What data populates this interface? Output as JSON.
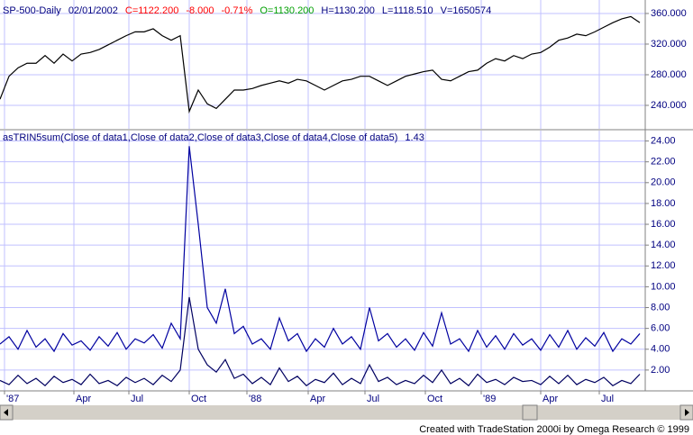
{
  "chart_data": [
    {
      "type": "line",
      "title": "SP-500-Daily",
      "annotations": [
        {
          "text": "02/01/2002",
          "color": "#000080"
        },
        {
          "text": "C=1122.200",
          "color": "#ff0000"
        },
        {
          "text": "-8.000",
          "color": "#ff0000"
        },
        {
          "text": "-0.71%",
          "color": "#ff0000"
        },
        {
          "text": "O=1130.200",
          "color": "#00a000"
        },
        {
          "text": "H=1130.200",
          "color": "#000080"
        },
        {
          "text": "L=1118.510",
          "color": "#000080"
        },
        {
          "text": "V=1650574",
          "color": "#000080"
        }
      ],
      "x": [
        0,
        1,
        2,
        3,
        4,
        5,
        6,
        7,
        8,
        9,
        10,
        11,
        12,
        13,
        14,
        15,
        16,
        17,
        18,
        19,
        20,
        21,
        22,
        23,
        24,
        25,
        26,
        27,
        28,
        29,
        30,
        31,
        32,
        33,
        34,
        35,
        36,
        37,
        38,
        39,
        40,
        41,
        42,
        43,
        44,
        45,
        46,
        47,
        48,
        49,
        50,
        51,
        52,
        53,
        54,
        55,
        56,
        57,
        58,
        59,
        60,
        61,
        62,
        63,
        64,
        65,
        66,
        67,
        68,
        69,
        70,
        71
      ],
      "series": [
        {
          "color": "#000000",
          "values": [
            248,
            278,
            289,
            295,
            295,
            305,
            295,
            307,
            298,
            307,
            309,
            313,
            319,
            325,
            331,
            336,
            336,
            340,
            331,
            325,
            331,
            232,
            260,
            242,
            236,
            248,
            260,
            260,
            262,
            266,
            269,
            272,
            269,
            274,
            272,
            266,
            260,
            266,
            272,
            274,
            278,
            278,
            272,
            266,
            272,
            278,
            281,
            284,
            286,
            274,
            272,
            278,
            284,
            286,
            295,
            301,
            298,
            305,
            301,
            307,
            309,
            316,
            325,
            328,
            333,
            331,
            336,
            342,
            348,
            353,
            356,
            348
          ]
        }
      ],
      "xlim": [
        0,
        71.6
      ],
      "ylim": [
        209.4,
        377.6
      ],
      "yticks": [
        {
          "value": 240,
          "label": "240.000"
        },
        {
          "value": 280,
          "label": "280.000"
        },
        {
          "value": 320,
          "label": "320.000"
        },
        {
          "value": 360,
          "label": "360.000"
        }
      ],
      "grid": true
    },
    {
      "type": "line",
      "title": "asTRIN5sum(Close of data1,Close of data2,Close of data3,Close of data4,Close of data5)",
      "annotations": [
        {
          "text": "1.43",
          "color": "#000080"
        }
      ],
      "x": [
        0,
        1,
        2,
        3,
        4,
        5,
        6,
        7,
        8,
        9,
        10,
        11,
        12,
        13,
        14,
        15,
        16,
        17,
        18,
        19,
        20,
        21,
        22,
        23,
        24,
        25,
        26,
        27,
        28,
        29,
        30,
        31,
        32,
        33,
        34,
        35,
        36,
        37,
        38,
        39,
        40,
        41,
        42,
        43,
        44,
        45,
        46,
        47,
        48,
        49,
        50,
        51,
        52,
        53,
        54,
        55,
        56,
        57,
        58,
        59,
        60,
        61,
        62,
        63,
        64,
        65,
        66,
        67,
        68,
        69,
        70,
        71
      ],
      "series": [
        {
          "color": "#0000a0",
          "values": [
            4.5,
            5.2,
            4.0,
            5.8,
            4.2,
            5.0,
            3.8,
            5.5,
            4.4,
            4.8,
            3.9,
            5.2,
            4.3,
            5.6,
            4.0,
            5.0,
            4.6,
            5.4,
            4.1,
            6.5,
            5.0,
            23.5,
            16.0,
            8.0,
            6.5,
            9.8,
            5.5,
            6.2,
            4.5,
            5.0,
            4.0,
            7.0,
            4.8,
            5.5,
            3.8,
            5.0,
            4.2,
            6.0,
            4.5,
            5.2,
            4.0,
            8.0,
            4.8,
            5.5,
            4.2,
            5.0,
            3.9,
            5.6,
            4.3,
            7.5,
            4.5,
            5.0,
            3.8,
            5.8,
            4.2,
            5.3,
            4.0,
            5.5,
            4.4,
            5.0,
            3.9,
            5.4,
            4.2,
            5.8,
            4.0,
            5.1,
            4.3,
            5.6,
            3.8,
            5.0,
            4.5,
            5.5
          ]
        },
        {
          "color": "#000060",
          "values": [
            1.0,
            0.6,
            1.5,
            0.7,
            1.2,
            0.5,
            1.4,
            0.8,
            1.1,
            0.6,
            1.6,
            0.7,
            1.0,
            0.5,
            1.3,
            0.8,
            1.2,
            0.6,
            1.5,
            0.9,
            2.0,
            9.0,
            4.0,
            2.5,
            1.8,
            3.0,
            1.2,
            1.6,
            0.7,
            1.3,
            0.6,
            2.2,
            0.9,
            1.4,
            0.5,
            1.1,
            0.8,
            1.7,
            0.6,
            1.2,
            0.7,
            2.5,
            0.9,
            1.3,
            0.6,
            1.0,
            0.7,
            1.5,
            0.8,
            2.0,
            0.7,
            1.2,
            0.5,
            1.6,
            0.8,
            1.1,
            0.6,
            1.3,
            0.9,
            1.0,
            0.6,
            1.4,
            0.7,
            1.5,
            0.6,
            1.1,
            0.8,
            1.3,
            0.5,
            1.0,
            0.7,
            1.6
          ]
        }
      ],
      "xlim": [
        0,
        71.6
      ],
      "ylim": [
        0,
        25
      ],
      "yticks": [
        {
          "value": 2,
          "label": "2.00"
        },
        {
          "value": 4,
          "label": "4.00"
        },
        {
          "value": 6,
          "label": "6.00"
        },
        {
          "value": 8,
          "label": "8.00"
        },
        {
          "value": 10,
          "label": "10.00"
        },
        {
          "value": 12,
          "label": "12.00"
        },
        {
          "value": 14,
          "label": "14.00"
        },
        {
          "value": 16,
          "label": "16.00"
        },
        {
          "value": 18,
          "label": "18.00"
        },
        {
          "value": 20,
          "label": "20.00"
        },
        {
          "value": 22,
          "label": "22.00"
        },
        {
          "value": 24,
          "label": "24.00"
        }
      ],
      "xticks": [
        {
          "value": 0.5,
          "label": "'87"
        },
        {
          "value": 8.2,
          "label": "Apr"
        },
        {
          "value": 14.3,
          "label": "Jul"
        },
        {
          "value": 21,
          "label": "Oct"
        },
        {
          "value": 27.4,
          "label": "'88"
        },
        {
          "value": 34.2,
          "label": "Apr"
        },
        {
          "value": 40.5,
          "label": "Jul"
        },
        {
          "value": 47.2,
          "label": "Oct"
        },
        {
          "value": 53.4,
          "label": "'89"
        },
        {
          "value": 60,
          "label": "Apr"
        },
        {
          "value": 66.5,
          "label": "Jul"
        }
      ],
      "grid": true
    }
  ],
  "footer": "Created with TradeStation 2000i by Omega Research © 1999"
}
